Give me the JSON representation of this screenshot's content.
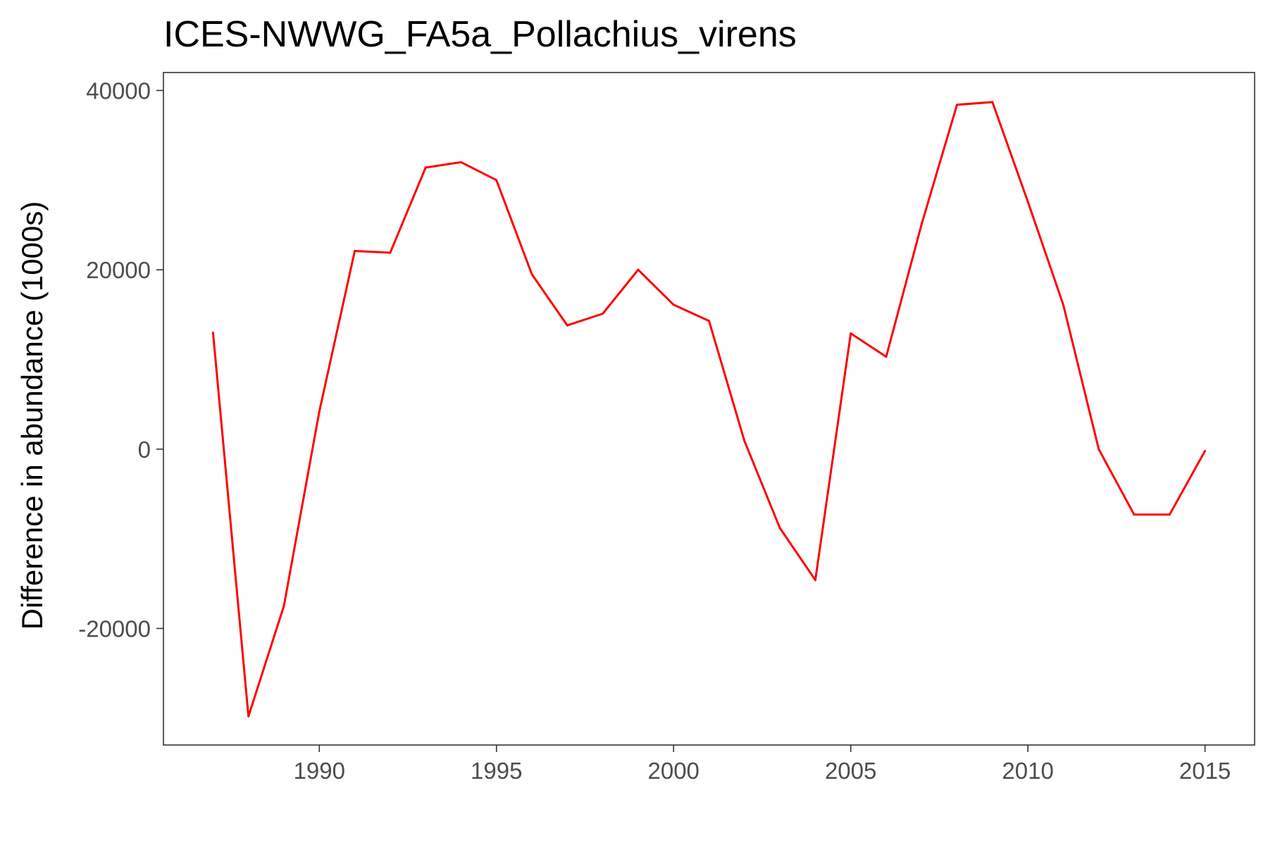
{
  "chart_data": {
    "type": "line",
    "title": "ICES-NWWG_FA5a_Pollachius_virens",
    "xlabel": "",
    "ylabel": "Difference in abundance (1000s)",
    "xlim": [
      1985.6,
      2016.4
    ],
    "ylim": [
      -33000,
      42000
    ],
    "x_ticks": [
      1990,
      1995,
      2000,
      2005,
      2010,
      2015
    ],
    "y_ticks": [
      -20000,
      0,
      20000,
      40000
    ],
    "grid": false,
    "legend": "none",
    "series": [
      {
        "color": "#ff0000",
        "x": [
          1987,
          1988,
          1989,
          1990,
          1991,
          1992,
          1993,
          1994,
          1995,
          1996,
          1997,
          1998,
          1999,
          2000,
          2001,
          2002,
          2003,
          2004,
          2005,
          2006,
          2007,
          2008,
          2009,
          2010,
          2011,
          2012,
          2013,
          2014,
          2015
        ],
        "values": [
          13000,
          -29800,
          -17500,
          4200,
          22100,
          21900,
          31400,
          32000,
          30000,
          19500,
          13800,
          15100,
          20000,
          16100,
          14300,
          900,
          -8800,
          -14600,
          12900,
          10300,
          25100,
          38400,
          38700,
          27600,
          16100,
          0,
          -7300,
          -7300,
          -200
        ]
      }
    ]
  }
}
